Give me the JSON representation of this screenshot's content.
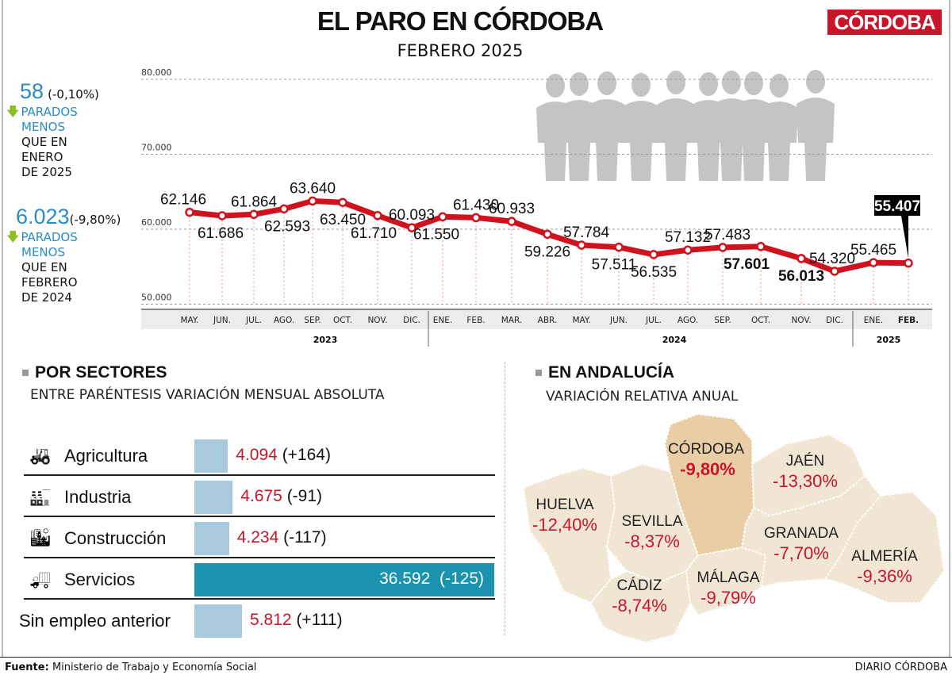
{
  "header": {
    "title": "EL PARO EN CÓRDOBA",
    "subtitle": "FEBRERO 2025",
    "logo": "CÓRDOBA"
  },
  "stats": [
    {
      "number": "58",
      "pct": "(-0,10%)",
      "line1": "PARADOS",
      "line2": "MENOS",
      "line3": "QUE EN",
      "line4": "ENERO",
      "line5": "DE 2025",
      "icon": "arrow-down-icon"
    },
    {
      "number": "6.023",
      "pct": "(-9,80%)",
      "line1": "PARADOS",
      "line2": "MENOS",
      "line3": "QUE EN",
      "line4": "FEBRERO",
      "line5": "DE 2024",
      "icon": "arrow-down-icon"
    }
  ],
  "chart_data": {
    "type": "line",
    "y_ticks": [
      "80.000",
      "70.000",
      "60.000",
      "50.000"
    ],
    "ylim": [
      50000,
      80000
    ],
    "grid": true,
    "color": "#d0121f",
    "categories": [
      "MAY.",
      "JUN.",
      "JUL.",
      "AGO.",
      "SEP.",
      "OCT.",
      "NOV.",
      "DIC.",
      "ENE.",
      "FEB.",
      "MAR.",
      "ABR.",
      "MAY.",
      "JUN.",
      "JUL.",
      "AGO.",
      "SEP.",
      "OCT.",
      "NOV.",
      "DIC.",
      "ENE.",
      "FEB."
    ],
    "years": [
      "2023",
      "2024",
      "2025"
    ],
    "values": [
      62146,
      61686,
      61864,
      62593,
      63640,
      63450,
      61710,
      60093,
      61550,
      61430,
      60933,
      59226,
      57784,
      57511,
      56535,
      57132,
      57483,
      57601,
      56013,
      54320,
      55465,
      55407
    ],
    "labels": [
      "62.146",
      "61.686",
      "61.864",
      "62.593",
      "63.640",
      "63.450",
      "61.710",
      "60.093",
      "61.550",
      "61.430",
      "60.933",
      "59.226",
      "57.784",
      "57.511",
      "56.535",
      "57.132",
      "57.483",
      "57.601",
      "56.013",
      "54.320",
      "55.465",
      "55.407"
    ]
  },
  "sectors": {
    "title": "POR SECTORES",
    "subtitle": "ENTRE PARÉNTESIS VARIACIÓN MENSUAL ABSOLUTA",
    "accent": "#1b93ae",
    "bar_color": "#a9c9dc",
    "value_color": "#c9152a",
    "items": [
      {
        "label": "Agricultura",
        "value": 4094,
        "value_text": "4.094",
        "change": "(+164)",
        "icon": "tractor-icon"
      },
      {
        "label": "Industria",
        "value": 4675,
        "value_text": "4.675",
        "change": "(-91)",
        "icon": "factory-icon"
      },
      {
        "label": "Construcción",
        "value": 4234,
        "value_text": "4.234",
        "change": "(-117)",
        "icon": "buildings-icon"
      },
      {
        "label": "Servicios",
        "value": 36592,
        "value_text": "36.592",
        "change": "(-125)",
        "icon": "truck-icon"
      },
      {
        "label": "Sin empleo anterior",
        "value": 5812,
        "value_text": "5.812",
        "change": "(+111)"
      }
    ]
  },
  "andalucia": {
    "title": "EN ANDALUCÍA",
    "subtitle": "VARIACIÓN RELATIVA ANUAL",
    "provinces": [
      {
        "name": "CÓRDOBA",
        "value": "-9,80%"
      },
      {
        "name": "JAÉN",
        "value": "-13,30%"
      },
      {
        "name": "HUELVA",
        "value": "-12,40%"
      },
      {
        "name": "SEVILLA",
        "value": "-8,37%"
      },
      {
        "name": "GRANADA",
        "value": "-7,70%"
      },
      {
        "name": "ALMERÍA",
        "value": "-9,36%"
      },
      {
        "name": "CÁDIZ",
        "value": "-8,74%"
      },
      {
        "name": "MÁLAGA",
        "value": "-9,79%"
      }
    ]
  },
  "footer": {
    "source_label": "Fuente:",
    "source": "Ministerio de Trabajo y Economía Social",
    "brand": "DIARIO CÓRDOBA"
  }
}
